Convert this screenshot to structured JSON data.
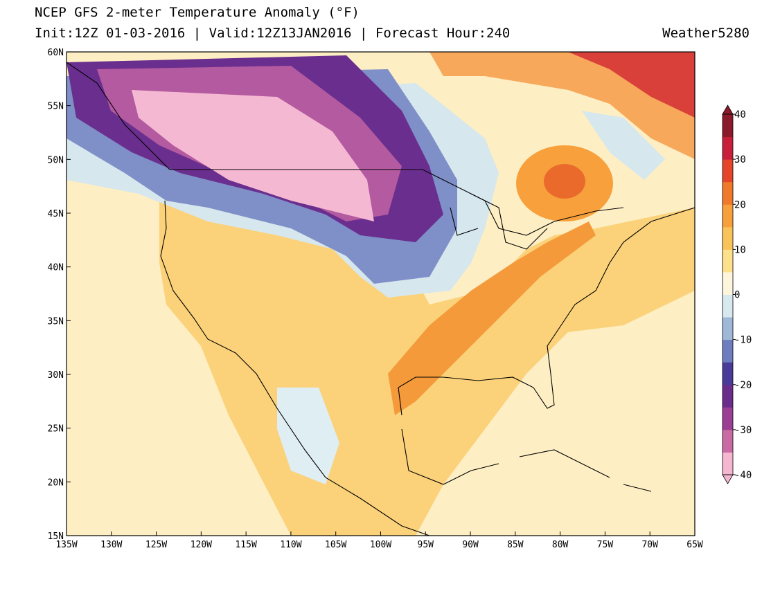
{
  "header": {
    "title": "NCEP GFS 2-meter Temperature Anomaly (°F)",
    "subtitle": "Init:12Z 01-03-2016 | Valid:12Z13JAN2016 | Forecast Hour:240",
    "brand": "Weather5280"
  },
  "map": {
    "lonlim": [
      -135,
      -65
    ],
    "latlim": [
      15,
      60
    ],
    "lonticks": [
      {
        "value": -135,
        "label": "135W"
      },
      {
        "value": -130,
        "label": "130W"
      },
      {
        "value": -125,
        "label": "125W"
      },
      {
        "value": -120,
        "label": "120W"
      },
      {
        "value": -115,
        "label": "115W"
      },
      {
        "value": -110,
        "label": "110W"
      },
      {
        "value": -105,
        "label": "105W"
      },
      {
        "value": -100,
        "label": "100W"
      },
      {
        "value": -95,
        "label": "95W"
      },
      {
        "value": -90,
        "label": "90W"
      },
      {
        "value": -85,
        "label": "85W"
      },
      {
        "value": -80,
        "label": "80W"
      },
      {
        "value": -75,
        "label": "75W"
      },
      {
        "value": -70,
        "label": "70W"
      },
      {
        "value": -65,
        "label": "65W"
      }
    ],
    "latticks": [
      {
        "value": 15,
        "label": "15N"
      },
      {
        "value": 20,
        "label": "20N"
      },
      {
        "value": 25,
        "label": "25N"
      },
      {
        "value": 30,
        "label": "30N"
      },
      {
        "value": 35,
        "label": "35N"
      },
      {
        "value": 40,
        "label": "40N"
      },
      {
        "value": 45,
        "label": "45N"
      },
      {
        "value": 50,
        "label": "50N"
      },
      {
        "value": 55,
        "label": "55N"
      },
      {
        "value": 60,
        "label": "60N"
      }
    ]
  },
  "colorbar": {
    "lim": [
      -40,
      40
    ],
    "ticks": [
      -40,
      -30,
      -20,
      -10,
      0,
      10,
      20,
      30,
      40
    ],
    "colors": [
      "#f4b6d0",
      "#c96aa5",
      "#9c3f94",
      "#6a2d8c",
      "#4a3b9a",
      "#6e7dbd",
      "#9fb8d8",
      "#d8e8ef",
      "#fdf6dc",
      "#fde08a",
      "#f9c35a",
      "#f7a03c",
      "#f07a2a",
      "#e5462a",
      "#c8203a",
      "#8b1a2a"
    ]
  }
}
